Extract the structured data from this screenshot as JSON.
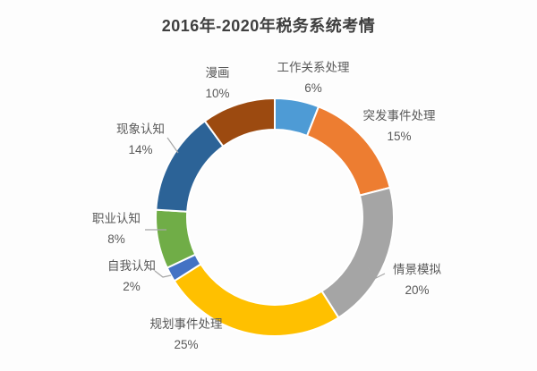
{
  "page": {
    "background": "#fdfdfd"
  },
  "colors": {
    "title_text": "#3f3f3f",
    "label_text": "#595959",
    "leader_line": "#a6a6a6",
    "slice_gap": "#ffffff"
  },
  "chart_data": {
    "type": "pie",
    "style": "donut",
    "title": "2016年-2020年税务系统考情",
    "direction": "clockwise",
    "start_angle_deg": 0,
    "legend_position": "none",
    "data_labels": "outside: category name over percentage",
    "segments": [
      {
        "label": "工作关系处理",
        "value": 6,
        "percent_label": "6%",
        "color": "#4E9BD5"
      },
      {
        "label": "突发事件处理",
        "value": 15,
        "percent_label": "15%",
        "color": "#ED7D31"
      },
      {
        "label": "情景模拟",
        "value": 20,
        "percent_label": "20%",
        "color": "#A5A5A5"
      },
      {
        "label": "规划事件处理",
        "value": 25,
        "percent_label": "25%",
        "color": "#FFC000"
      },
      {
        "label": "自我认知",
        "value": 2,
        "percent_label": "2%",
        "color": "#4472C4"
      },
      {
        "label": "职业认知",
        "value": 8,
        "percent_label": "8%",
        "color": "#70AD47"
      },
      {
        "label": "现象认知",
        "value": 14,
        "percent_label": "14%",
        "color": "#2C6397"
      },
      {
        "label": "漫画",
        "value": 10,
        "percent_label": "10%",
        "color": "#9C4A10"
      }
    ]
  }
}
